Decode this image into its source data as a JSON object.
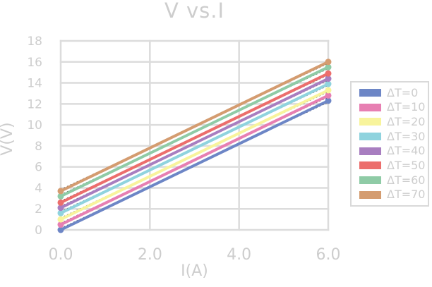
{
  "chart_data": {
    "type": "line",
    "title": "V vs.I",
    "xlabel": "I(A)",
    "ylabel": "V(V)",
    "x": [
      0,
      6
    ],
    "series": [
      {
        "name": "ΔT=0",
        "color": "#6D86C6",
        "values": [
          0.0,
          12.3
        ]
      },
      {
        "name": "ΔT=10",
        "color": "#E77FB2",
        "values": [
          0.5,
          12.8
        ]
      },
      {
        "name": "ΔT=20",
        "color": "#F8F49C",
        "values": [
          1.0,
          13.3
        ]
      },
      {
        "name": "ΔT=30",
        "color": "#8FD3DE",
        "values": [
          1.6,
          13.9
        ]
      },
      {
        "name": "ΔT=40",
        "color": "#A87EC0",
        "values": [
          2.1,
          14.4
        ]
      },
      {
        "name": "ΔT=50",
        "color": "#EC6E6C",
        "values": [
          2.6,
          14.9
        ]
      },
      {
        "name": "ΔT=60",
        "color": "#8FCBA6",
        "values": [
          3.2,
          15.5
        ]
      },
      {
        "name": "ΔT=70",
        "color": "#D49C70",
        "values": [
          3.7,
          16.0
        ]
      }
    ],
    "x_ticks": [
      "0.0",
      "2.0",
      "4.0",
      "6.0"
    ],
    "x_tick_values": [
      0,
      2,
      4,
      6
    ],
    "y_ticks": [
      "0",
      "2",
      "4",
      "6",
      "8",
      "10",
      "12",
      "14",
      "16",
      "18"
    ],
    "y_tick_values": [
      0,
      2,
      4,
      6,
      8,
      10,
      12,
      14,
      16,
      18
    ],
    "xlim": [
      0,
      6
    ],
    "ylim": [
      0,
      18
    ],
    "grid": true,
    "legend_position": "right",
    "marker": "circle",
    "trendline_overlay": "black-dotted"
  },
  "colors": {
    "text": "#cdcdcd",
    "grid": "#dcdcdc",
    "legend_border": "#d9d9d9",
    "trendline": "#222222",
    "background": "#ffffff"
  }
}
